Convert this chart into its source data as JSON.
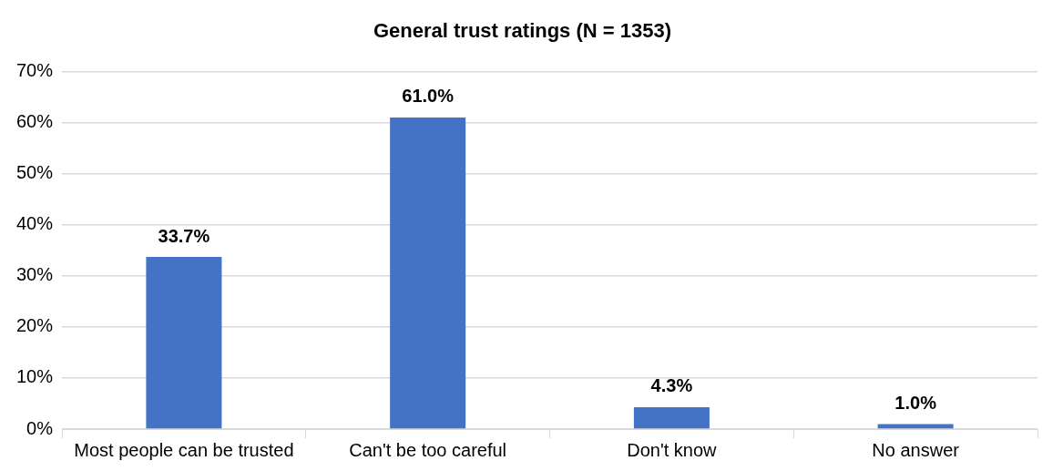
{
  "chart_data": {
    "type": "bar",
    "title": "General trust ratings (N = 1353)",
    "categories": [
      "Most people can be trusted",
      "Can't be too careful",
      "Don't know",
      "No answer"
    ],
    "values": [
      33.7,
      61.0,
      4.3,
      1.0
    ],
    "value_labels": [
      "33.7%",
      "61.0%",
      "4.3%",
      "1.0%"
    ],
    "color": "#4472c4",
    "ylim": [
      0,
      70
    ],
    "yticks": [
      {
        "value": 0,
        "label": "0%"
      },
      {
        "value": 10,
        "label": "10%"
      },
      {
        "value": 20,
        "label": "20%"
      },
      {
        "value": 30,
        "label": "30%"
      },
      {
        "value": 40,
        "label": "40%"
      },
      {
        "value": 50,
        "label": "50%"
      },
      {
        "value": 60,
        "label": "60%"
      },
      {
        "value": 70,
        "label": "70%"
      }
    ],
    "grid": "y",
    "legend": false
  }
}
